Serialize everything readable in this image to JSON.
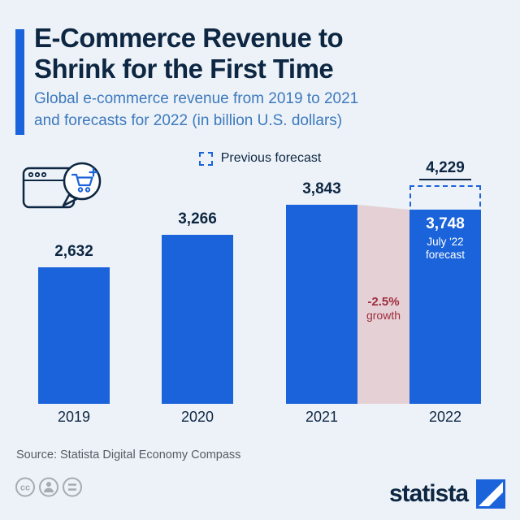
{
  "header": {
    "title_line1": "E-Commerce Revenue to",
    "title_line2": "Shrink for the First Time",
    "subtitle_line1": "Global e-commerce revenue from 2019 to 2021",
    "subtitle_line2": "and forecasts for 2022 (in billion U.S. dollars)"
  },
  "legend": {
    "label": "Previous forecast",
    "swatch": "dashed-square"
  },
  "chart_data": {
    "type": "bar",
    "title": "E-Commerce Revenue to Shrink for the First Time",
    "subtitle": "Global e-commerce revenue from 2019 to 2021 and forecasts for 2022 (in billion U.S. dollars)",
    "unit": "billion U.S. dollars",
    "categories": [
      "2019",
      "2020",
      "2021",
      "2022"
    ],
    "values": [
      2632,
      3266,
      3843,
      3748
    ],
    "value_labels": [
      "2,632",
      "3,266",
      "3,843",
      "3,748"
    ],
    "previous_forecast_2022": 4229,
    "previous_forecast_label": "4,229",
    "forecast_note_line1": "July '22",
    "forecast_note_line2": "forecast",
    "growth_line1": "-2.5%",
    "growth_line2": "growth",
    "legend_entries": [
      "Previous forecast"
    ],
    "legend_position": "top",
    "grid": false,
    "ylim": [
      0,
      4400
    ],
    "bar_color": "#1a63da",
    "decline_band_color": "#e5d1d5",
    "growth_text_color": "#9e2b3e",
    "accent_color": "#1a63da",
    "title_color": "#0d2743",
    "subtitle_color": "#3c79bd"
  },
  "footer": {
    "source": "Source: Statista Digital Economy Compass",
    "brand": "statista"
  },
  "icons": {
    "illustration": "browser-window-with-cart-speech-bubble",
    "license": [
      "cc-icon",
      "attribution-person-icon",
      "equals-icon"
    ],
    "brand_logo": "statista-square-logo"
  }
}
